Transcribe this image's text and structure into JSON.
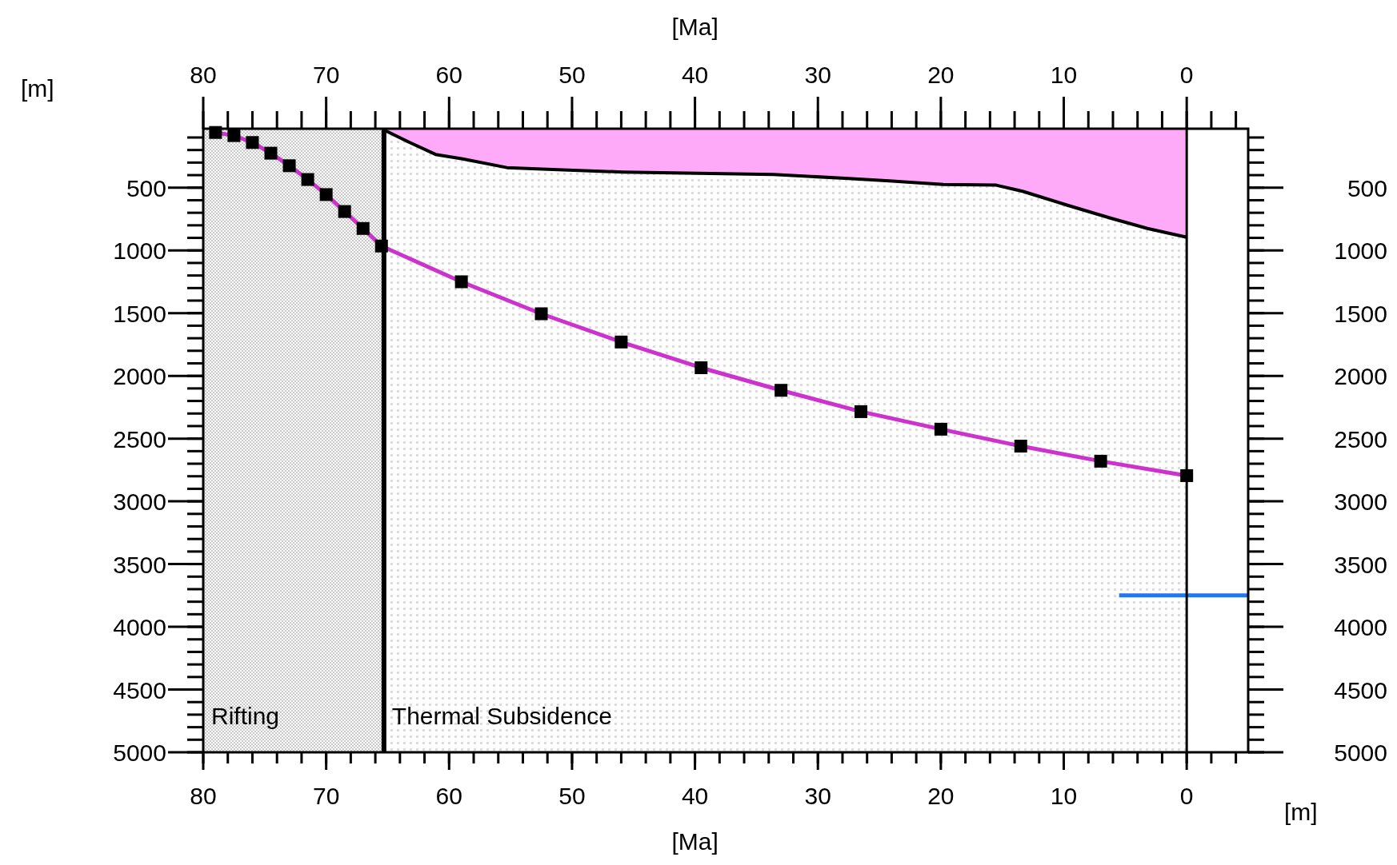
{
  "chart_data": {
    "type": "line",
    "xlabel": "[Ma]",
    "x2label": "[Ma]",
    "ylabel": "[m]",
    "y2label": "[m]",
    "xlim": [
      80,
      -5
    ],
    "xticks": [
      80,
      70,
      60,
      50,
      40,
      30,
      20,
      10,
      0
    ],
    "x2lim": [
      80,
      -5
    ],
    "x2ticks": [
      80,
      70,
      60,
      50,
      40,
      30,
      20,
      10,
      0
    ],
    "ylim": [
      5000,
      30
    ],
    "yticks": [
      500,
      1000,
      1500,
      2000,
      2500,
      3000,
      3500,
      4000,
      4500,
      5000
    ],
    "y2lim": [
      5000,
      30
    ],
    "y2ticks": [
      500,
      1000,
      1500,
      2000,
      2500,
      3000,
      3500,
      4000,
      4500,
      5000
    ],
    "grid": false,
    "line_style": "solid",
    "bands": [
      {
        "axis": "x",
        "from": 80,
        "to": 65.3,
        "label": "Rifting",
        "color": "#c8c8c8"
      },
      {
        "axis": "x",
        "from": 65.3,
        "to": 0,
        "label": "Thermal Subsidence",
        "color": "#dcdcdc"
      }
    ],
    "ref_lines": [
      {
        "axis": "x",
        "value": 65.3,
        "color": "#000000"
      },
      {
        "axis": "x",
        "value": 0,
        "color": "#000000"
      }
    ],
    "series": [
      {
        "type": "area",
        "color": "#ffaaf8",
        "x": [
          65.3,
          63.2,
          61.1,
          58.9,
          55.3,
          51.6,
          45.9,
          33.6,
          27.8,
          24.2,
          19.8,
          15.5,
          13.3,
          9.7,
          6.1,
          3.2,
          0
        ],
        "values": [
          40,
          140,
          235,
          270,
          340,
          355,
          375,
          395,
          425,
          445,
          475,
          480,
          530,
          640,
          745,
          825,
          895
        ]
      },
      {
        "color": "#cc33cc",
        "marker": "square",
        "colors": [
          "#000000",
          "#000000",
          "#000000",
          "#000000",
          "#000000",
          "#000000",
          "#000000",
          "#000000",
          "#000000",
          "#000000",
          "#000000",
          "#000000",
          "#000000",
          "#000000",
          "#000000",
          "#000000",
          "#000000",
          "#000000",
          "#000000",
          "#000000"
        ],
        "x": [
          79,
          77.5,
          76,
          74.5,
          73,
          71.5,
          70,
          68.5,
          67,
          65.5,
          59,
          52.5,
          46,
          39.5,
          33,
          26.5,
          20,
          13.5,
          7,
          0
        ],
        "values": [
          60,
          85,
          140,
          225,
          325,
          435,
          555,
          690,
          825,
          965,
          1250,
          1505,
          1730,
          1935,
          2115,
          2285,
          2425,
          2560,
          2680,
          2795
        ]
      },
      {
        "color": "#1e78f0",
        "marker": "none",
        "x": [
          5.5,
          -5
        ],
        "values": [
          3750,
          3750
        ]
      }
    ]
  }
}
